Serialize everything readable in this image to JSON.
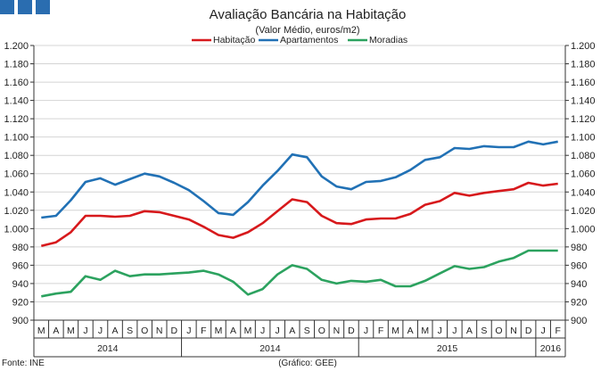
{
  "chart_data": {
    "type": "line",
    "title": "Avaliação Bancária na Habitação",
    "subtitle": "(Valor Médio, euros/m2)",
    "source": "Fonte: INE",
    "credit": "(Gráfico: GEE)",
    "ylim": [
      900,
      1200
    ],
    "yticks": [
      "900",
      "920",
      "940",
      "960",
      "980",
      "1.000",
      "1.020",
      "1.040",
      "1.060",
      "1.080",
      "1.100",
      "1.120",
      "1.140",
      "1.160",
      "1.180",
      "1.200"
    ],
    "x": [
      "M",
      "A",
      "M",
      "J",
      "J",
      "A",
      "S",
      "O",
      "N",
      "D",
      "J",
      "F",
      "M",
      "A",
      "M",
      "J",
      "J",
      "A",
      "S",
      "O",
      "N",
      "D",
      "J",
      "F",
      "M",
      "A",
      "M",
      "J",
      "J",
      "A",
      "S",
      "O",
      "N",
      "D",
      "J",
      "F"
    ],
    "years": [
      "2014",
      "2014",
      "2015",
      "2016"
    ],
    "series": [
      {
        "name": "Habitação",
        "color": "#d7191c",
        "values": [
          981,
          985,
          996,
          1014,
          1014,
          1013,
          1014,
          1019,
          1018,
          1014,
          1010,
          1002,
          993,
          990,
          996,
          1006,
          1019,
          1032,
          1029,
          1014,
          1006,
          1005,
          1010,
          1011,
          1011,
          1016,
          1026,
          1030,
          1039,
          1036,
          1039,
          1041,
          1043,
          1050,
          1047,
          1049
        ]
      },
      {
        "name": "Apartamentos",
        "color": "#2171b5",
        "values": [
          1012,
          1014,
          1031,
          1051,
          1055,
          1048,
          1054,
          1060,
          1057,
          1050,
          1042,
          1030,
          1017,
          1015,
          1029,
          1047,
          1063,
          1081,
          1078,
          1057,
          1046,
          1043,
          1051,
          1052,
          1056,
          1064,
          1075,
          1078,
          1088,
          1087,
          1090,
          1089,
          1089,
          1095,
          1092,
          1095
        ]
      },
      {
        "name": "Moradias",
        "color": "#2ca25f",
        "values": [
          926,
          929,
          931,
          948,
          944,
          954,
          948,
          950,
          950,
          951,
          952,
          954,
          950,
          942,
          928,
          934,
          950,
          960,
          956,
          944,
          940,
          943,
          942,
          944,
          937,
          937,
          943,
          951,
          959,
          956,
          958,
          964,
          968,
          976,
          976,
          976
        ]
      }
    ]
  }
}
